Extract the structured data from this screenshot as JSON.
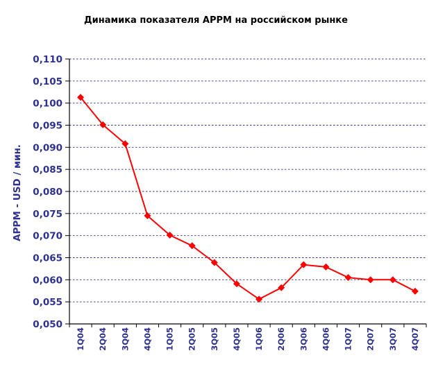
{
  "chart_data": {
    "type": "line",
    "title": "Динамика показателя APPM на российском рынке",
    "xlabel": "",
    "ylabel": "APPM - USD / мин.",
    "ylim": [
      0.05,
      0.11
    ],
    "grid": true,
    "yticks": [
      "0,050",
      "0,055",
      "0,060",
      "0,065",
      "0,070",
      "0,075",
      "0,080",
      "0,085",
      "0,090",
      "0,095",
      "0,100",
      "0,105",
      "0,110"
    ],
    "categories": [
      "1Q04",
      "2Q04",
      "3Q04",
      "4Q04",
      "1Q05",
      "2Q05",
      "3Q05",
      "4Q05",
      "1Q06",
      "2Q06",
      "3Q06",
      "4Q06",
      "1Q07",
      "2Q07",
      "3Q07",
      "4Q07"
    ],
    "series": [
      {
        "values": [
          0.1013,
          0.0951,
          0.0908,
          0.0745,
          0.0701,
          0.0677,
          0.0639,
          0.0591,
          0.0556,
          0.0582,
          0.0634,
          0.0629,
          0.0605,
          0.06,
          0.06,
          0.0574
        ],
        "color": "#ff0000"
      }
    ]
  }
}
